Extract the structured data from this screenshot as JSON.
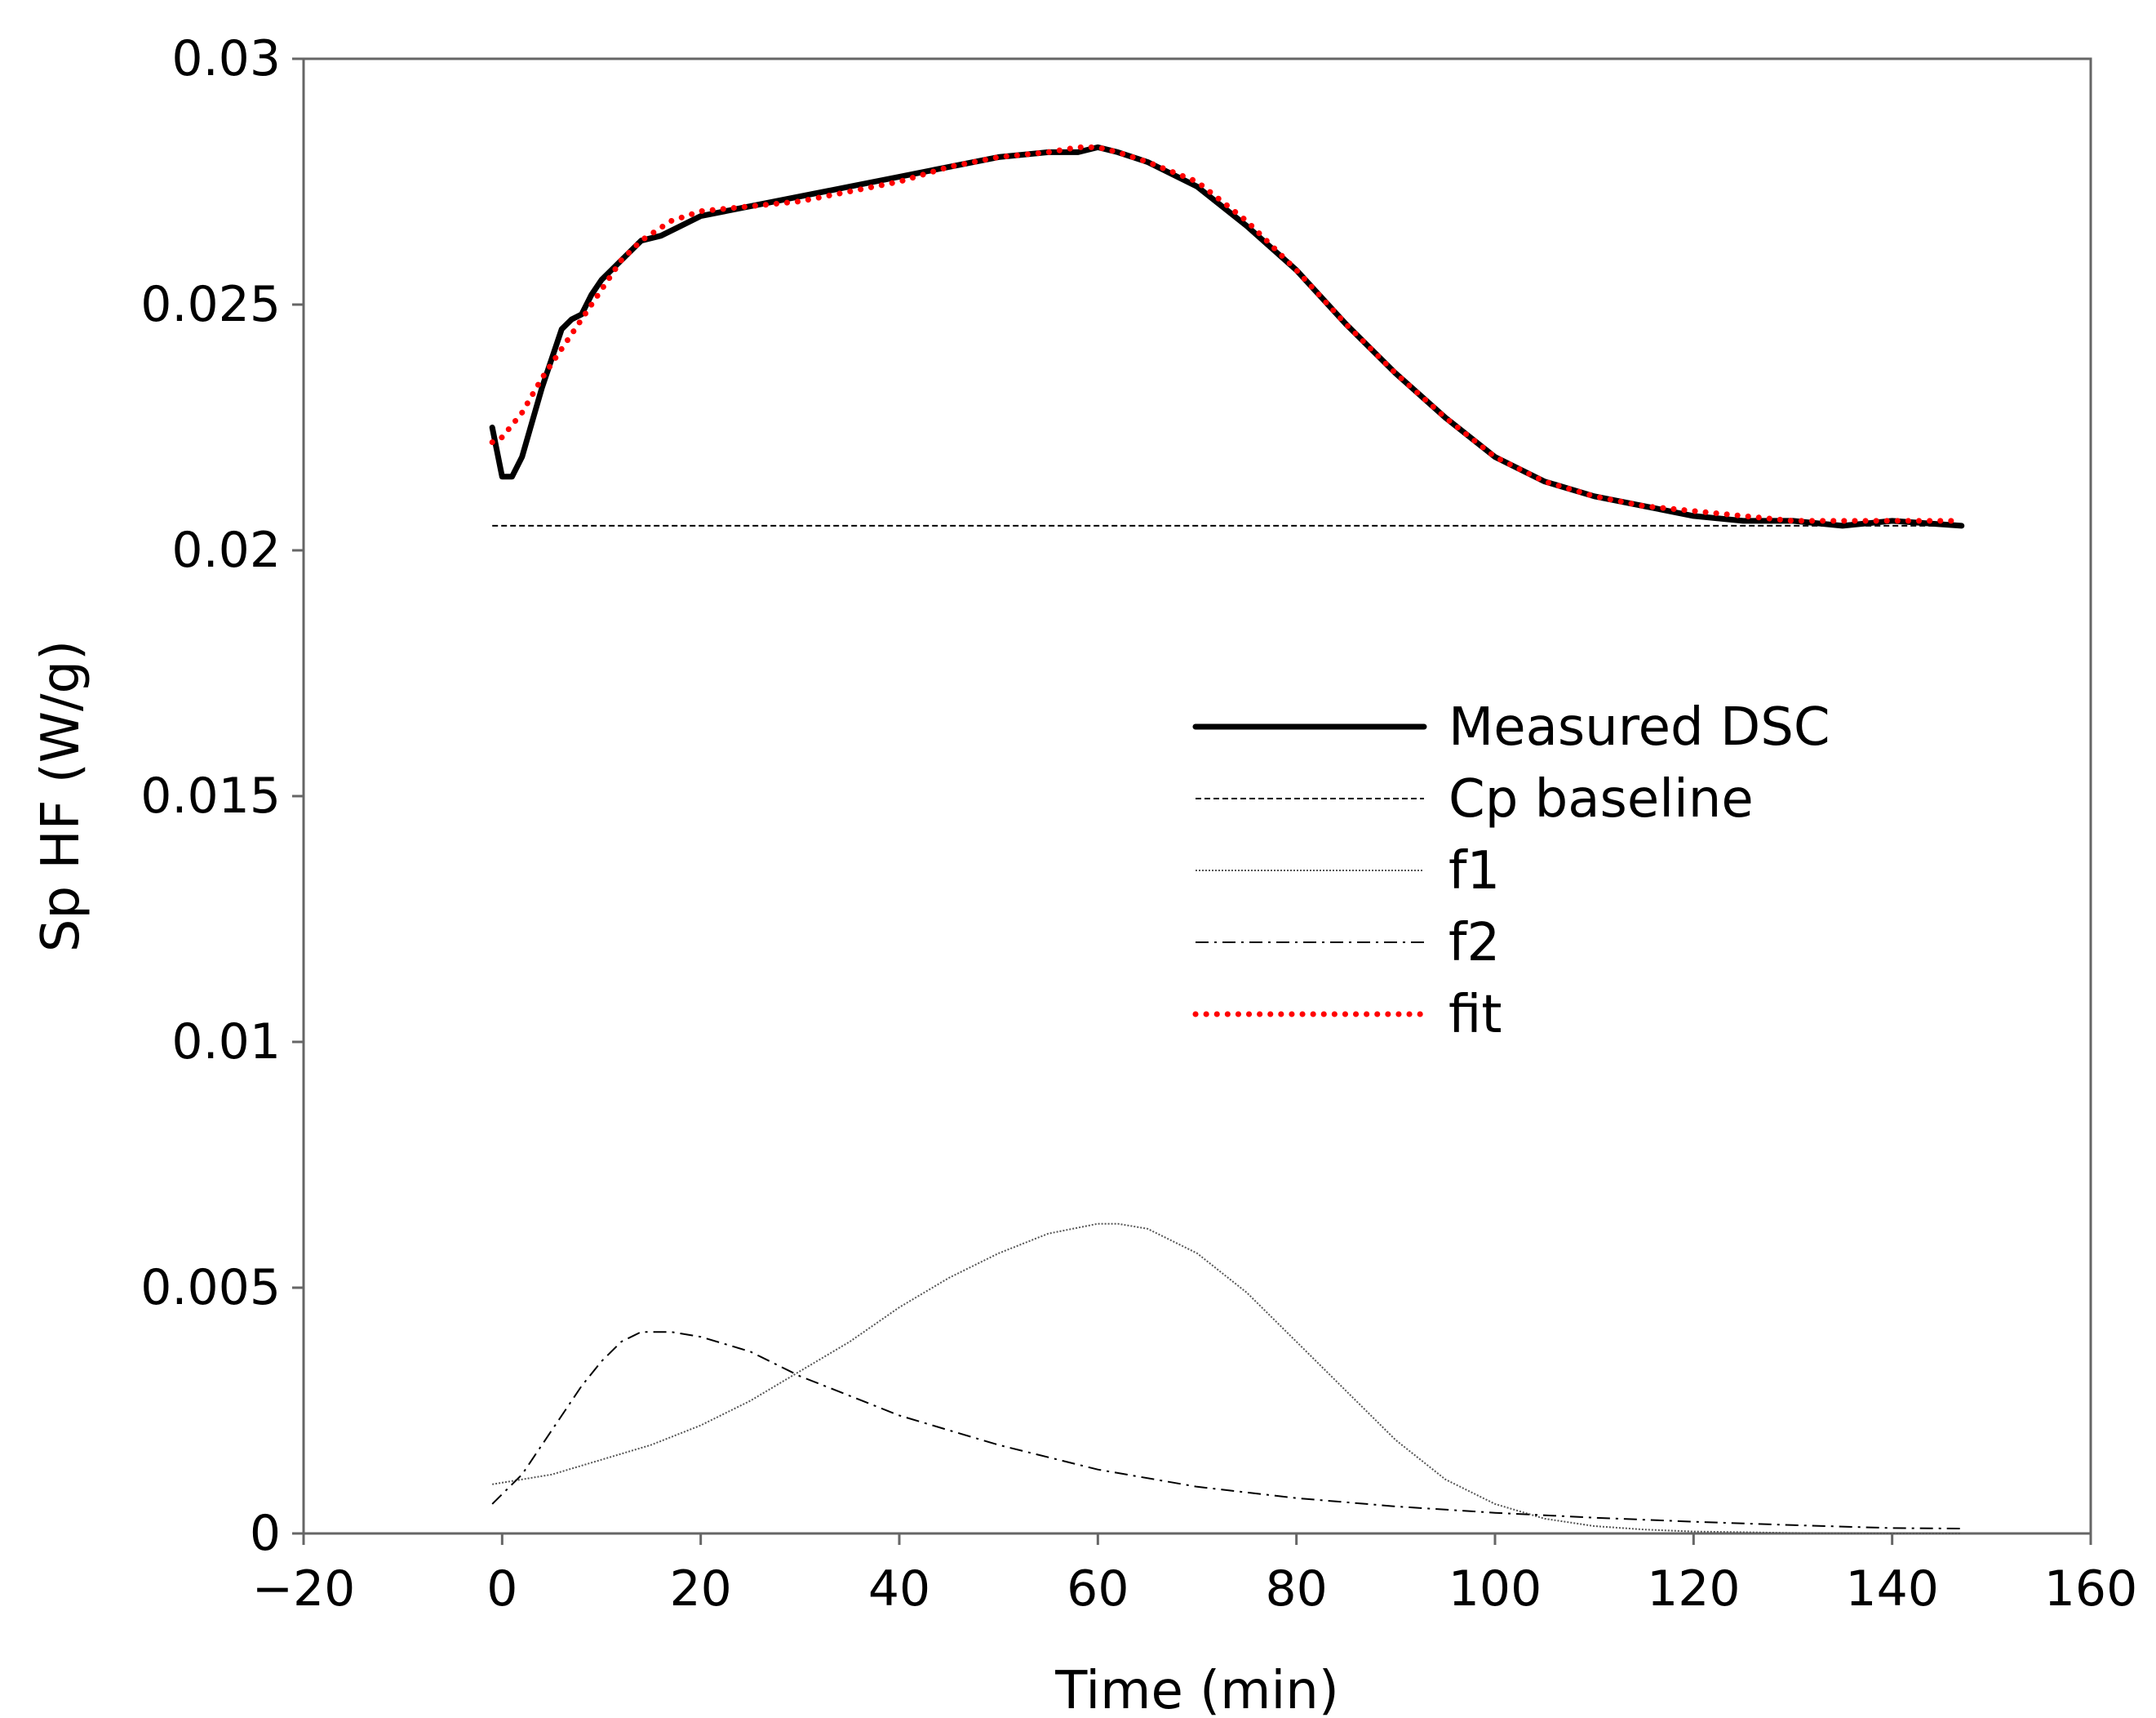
{
  "chart_data": {
    "type": "line",
    "title": "",
    "xlabel": "Time (min)",
    "ylabel": "Sp HF (W/g)",
    "xlim": [
      -20,
      160
    ],
    "ylim": [
      0,
      0.03
    ],
    "xticks": [
      -20,
      0,
      20,
      40,
      60,
      80,
      100,
      120,
      140,
      160
    ],
    "xtick_labels": [
      "−20",
      "0",
      "20",
      "40",
      "60",
      "80",
      "100",
      "120",
      "140",
      "160"
    ],
    "yticks": [
      0,
      0.005,
      0.01,
      0.015,
      0.02,
      0.025,
      0.03
    ],
    "ytick_labels": [
      "0",
      "0.005",
      "0.01",
      "0.015",
      "0.02",
      "0.025",
      "0.03"
    ],
    "grid": false,
    "legend_position": "center-right",
    "series": [
      {
        "name": "Measured DSC",
        "style": "solid-thick",
        "color": "#000000",
        "x": [
          -1,
          0,
          1,
          2,
          4,
          6,
          7,
          8,
          9,
          10,
          12,
          14,
          16,
          18,
          20,
          25,
          30,
          35,
          40,
          45,
          50,
          55,
          58,
          60,
          62,
          65,
          70,
          75,
          80,
          85,
          90,
          95,
          100,
          105,
          110,
          115,
          120,
          125,
          130,
          135,
          140,
          147
        ],
        "y": [
          0.0225,
          0.0215,
          0.0215,
          0.0219,
          0.0233,
          0.0245,
          0.0247,
          0.0248,
          0.0252,
          0.0255,
          0.0259,
          0.0263,
          0.0264,
          0.0266,
          0.0268,
          0.027,
          0.0272,
          0.0274,
          0.0276,
          0.0278,
          0.028,
          0.0281,
          0.0281,
          0.0282,
          0.0281,
          0.0279,
          0.0274,
          0.0266,
          0.0257,
          0.0246,
          0.0236,
          0.0227,
          0.0219,
          0.0214,
          0.0211,
          0.0209,
          0.0207,
          0.0206,
          0.0206,
          0.0205,
          0.0206,
          0.0205
        ]
      },
      {
        "name": "Cp baseline",
        "style": "dashed",
        "color": "#000000",
        "x": [
          -1,
          147
        ],
        "y": [
          0.0205,
          0.0205
        ]
      },
      {
        "name": "f1",
        "style": "dotted-thin",
        "color": "#555555",
        "x": [
          -1,
          5,
          10,
          15,
          20,
          25,
          30,
          35,
          40,
          45,
          50,
          55,
          60,
          62,
          65,
          70,
          75,
          80,
          85,
          90,
          95,
          100,
          105,
          110,
          115,
          120,
          130,
          140,
          147
        ],
        "y": [
          0.001,
          0.0012,
          0.0015,
          0.0018,
          0.0022,
          0.0027,
          0.0033,
          0.0039,
          0.0046,
          0.0052,
          0.0057,
          0.0061,
          0.0063,
          0.0063,
          0.0062,
          0.0057,
          0.0049,
          0.0039,
          0.0029,
          0.0019,
          0.0011,
          0.0006,
          0.0003,
          0.00015,
          8e-05,
          4e-05,
          1e-05,
          0.0,
          0.0
        ]
      },
      {
        "name": "f2",
        "style": "dashdot",
        "color": "#000000",
        "x": [
          -1,
          2,
          5,
          8,
          10,
          12,
          14,
          17,
          20,
          25,
          30,
          35,
          40,
          45,
          50,
          60,
          70,
          80,
          90,
          100,
          110,
          120,
          130,
          140,
          147
        ],
        "y": [
          0.0006,
          0.0012,
          0.0021,
          0.003,
          0.0035,
          0.0039,
          0.0041,
          0.0041,
          0.004,
          0.0037,
          0.0032,
          0.0028,
          0.0024,
          0.0021,
          0.0018,
          0.0013,
          0.00095,
          0.00072,
          0.00055,
          0.00042,
          0.00032,
          0.00024,
          0.00017,
          0.00011,
          0.0001
        ]
      },
      {
        "name": "fit",
        "style": "dotted-red",
        "color": "#ff0000",
        "x": [
          -1,
          0,
          2,
          4,
          6,
          8,
          10,
          12,
          14,
          17,
          20,
          25,
          30,
          35,
          40,
          45,
          50,
          55,
          58,
          60,
          62,
          65,
          70,
          75,
          80,
          85,
          90,
          95,
          100,
          105,
          110,
          115,
          120,
          125,
          130,
          135,
          140,
          147
        ],
        "y": [
          0.0222,
          0.0223,
          0.0228,
          0.0235,
          0.0241,
          0.0247,
          0.0253,
          0.0259,
          0.0263,
          0.0267,
          0.0269,
          0.027,
          0.0271,
          0.0273,
          0.0275,
          0.0278,
          0.028,
          0.0281,
          0.0282,
          0.0282,
          0.0281,
          0.0279,
          0.0275,
          0.0267,
          0.0257,
          0.0246,
          0.0236,
          0.0227,
          0.0219,
          0.0214,
          0.0211,
          0.0209,
          0.0208,
          0.0207,
          0.0206,
          0.0206,
          0.0206,
          0.0206
        ]
      }
    ]
  }
}
